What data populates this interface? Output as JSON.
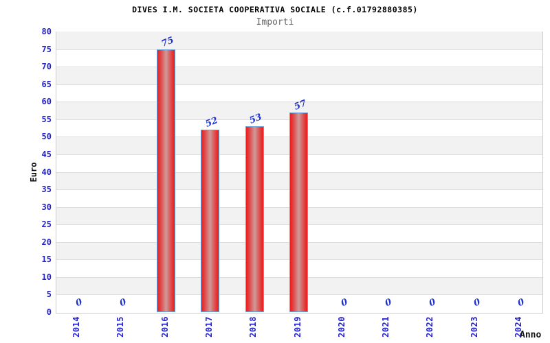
{
  "chart_data": {
    "type": "bar",
    "title": "DIVES I.M. SOCIETA COOPERATIVA SOCIALE (c.f.01792880385)",
    "subtitle": "Importi",
    "xlabel": "Anno",
    "ylabel": "Euro",
    "categories": [
      "2014",
      "2015",
      "2016",
      "2017",
      "2018",
      "2019",
      "2020",
      "2021",
      "2022",
      "2023",
      "2024"
    ],
    "values": [
      0,
      0,
      75,
      52,
      53,
      57,
      0,
      0,
      0,
      0,
      0
    ],
    "point_labels": [
      "0",
      "0",
      "75",
      "52",
      "53",
      "57",
      "0",
      "0",
      "0",
      "0",
      "0"
    ],
    "ylim": [
      0,
      80
    ],
    "ytick_step": 5,
    "legend": "none",
    "grid": "horizontal-bands-alternating",
    "colors": {
      "tick_label": "#2222cc",
      "point_label": "#2233cc",
      "bar_border": "#6ba3dc",
      "bar_edge_red": "#ee1c1c",
      "bar_mid_red": "#e04444",
      "bar_center": "#cf9a9a",
      "band_gray": "#f2f2f2",
      "band_white": "#ffffff",
      "grid_line": "#dddddd",
      "plot_border": "#cccccc",
      "title_color": "#000000",
      "subtitle_color": "#666666",
      "axis_title_color": "#111111"
    }
  }
}
